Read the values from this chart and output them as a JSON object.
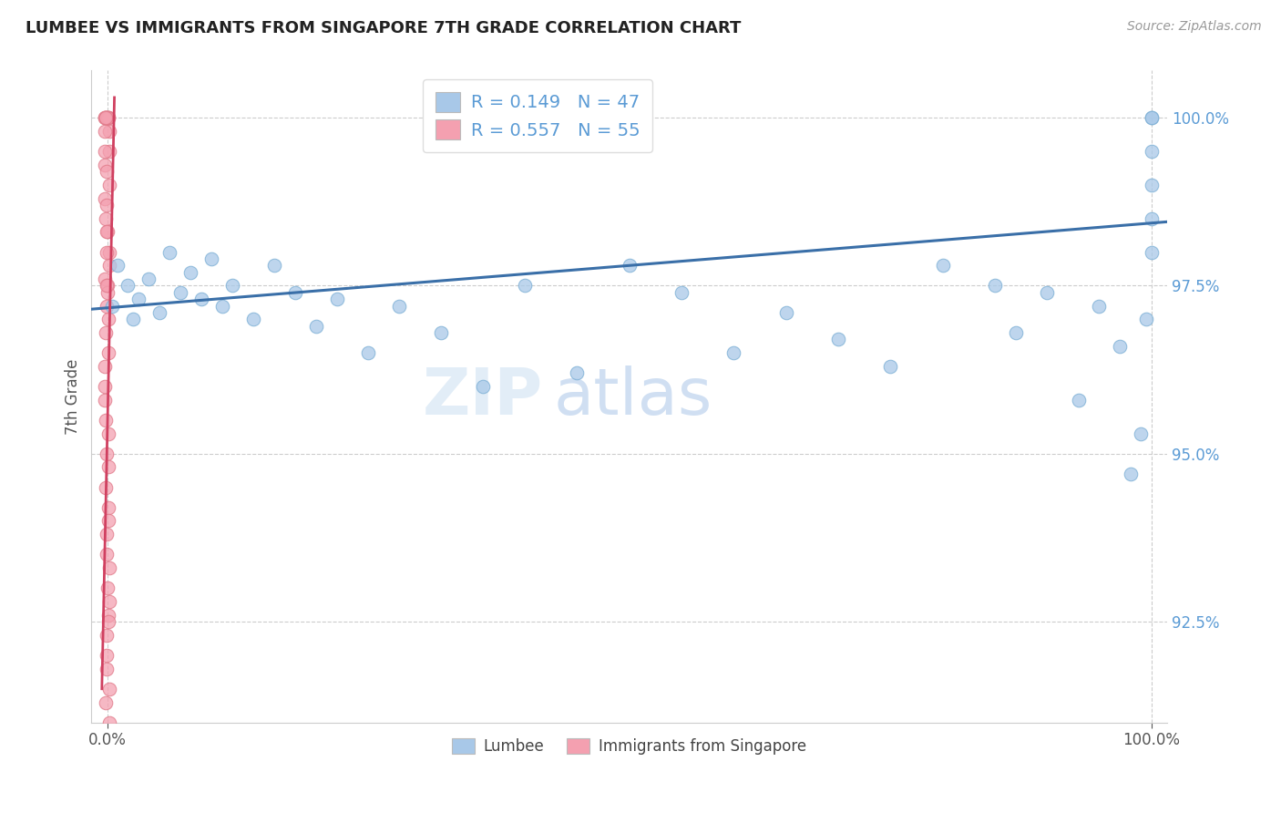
{
  "title": "LUMBEE VS IMMIGRANTS FROM SINGAPORE 7TH GRADE CORRELATION CHART",
  "source": "Source: ZipAtlas.com",
  "ylabel": "7th Grade",
  "r_lumbee": 0.149,
  "n_lumbee": 47,
  "r_singapore": 0.557,
  "n_singapore": 55,
  "lumbee_color": "#a8c8e8",
  "lumbee_edge": "#7aaed4",
  "singapore_color": "#f4a0b0",
  "singapore_edge": "#e07888",
  "trend_blue_color": "#3a6fa8",
  "trend_pink_color": "#d04060",
  "tick_color": "#5b9bd5",
  "watermark_color": "#d0e4f4",
  "lumbee_x": [
    0.5,
    1.0,
    2.0,
    2.5,
    3.0,
    4.0,
    5.0,
    6.0,
    7.0,
    8.0,
    9.0,
    10.0,
    11.0,
    12.0,
    14.0,
    16.0,
    18.0,
    20.0,
    22.0,
    25.0,
    28.0,
    32.0,
    36.0,
    40.0,
    45.0,
    50.0,
    55.0,
    60.0,
    65.0,
    70.0,
    75.0,
    80.0,
    85.0,
    87.0,
    90.0,
    93.0,
    95.0,
    97.0,
    98.0,
    99.0,
    99.5,
    100.0,
    100.0,
    100.0,
    100.0,
    100.0,
    100.0
  ],
  "lumbee_y": [
    97.2,
    97.8,
    97.5,
    97.0,
    97.3,
    97.6,
    97.1,
    98.0,
    97.4,
    97.7,
    97.3,
    97.9,
    97.2,
    97.5,
    97.0,
    97.8,
    97.4,
    96.9,
    97.3,
    96.5,
    97.2,
    96.8,
    96.0,
    97.5,
    96.2,
    97.8,
    97.4,
    96.5,
    97.1,
    96.7,
    96.3,
    97.8,
    97.5,
    96.8,
    97.4,
    95.8,
    97.2,
    96.6,
    94.7,
    95.3,
    97.0,
    98.0,
    98.5,
    99.0,
    99.5,
    100.0,
    100.0
  ],
  "singapore_x": [
    0.0,
    0.0,
    0.0,
    0.0,
    0.0,
    0.0,
    0.0,
    0.0,
    0.0,
    0.0,
    0.0,
    0.0,
    0.0,
    0.0,
    0.0,
    0.0,
    0.0,
    0.0,
    0.0,
    0.0,
    0.0,
    0.0,
    0.0,
    0.0,
    0.0,
    0.0,
    0.0,
    0.0,
    0.0,
    0.0,
    0.0,
    0.0,
    0.0,
    0.0,
    0.0,
    0.0,
    0.0,
    0.0,
    0.0,
    0.0,
    0.0,
    0.0,
    0.0,
    0.0,
    0.0,
    0.0,
    0.0,
    0.0,
    0.0,
    0.0,
    0.0,
    0.0,
    0.0,
    0.0,
    0.0
  ],
  "singapore_y": [
    100.0,
    100.0,
    100.0,
    100.0,
    100.0,
    99.8,
    99.5,
    99.3,
    99.0,
    98.8,
    98.5,
    98.3,
    98.0,
    97.8,
    97.6,
    97.5,
    97.4,
    97.2,
    97.0,
    96.8,
    96.5,
    96.3,
    96.0,
    95.8,
    95.5,
    95.3,
    95.0,
    94.8,
    94.5,
    94.2,
    94.0,
    93.8,
    93.5,
    93.3,
    93.0,
    92.8,
    92.6,
    92.5,
    92.3,
    92.0,
    91.8,
    91.5,
    91.3,
    91.0,
    97.5,
    98.0,
    98.3,
    98.7,
    99.2,
    99.5,
    99.8,
    100.0,
    100.0,
    100.0,
    100.0
  ],
  "ylim_min": 91.0,
  "ylim_max": 100.7,
  "xlim_min": -1.5,
  "xlim_max": 101.5,
  "yticks": [
    92.5,
    95.0,
    97.5,
    100.0
  ],
  "ytick_labels": [
    "92.5%",
    "95.0%",
    "97.5%",
    "100.0%"
  ],
  "trend_x_start": -1.5,
  "trend_x_end": 101.5,
  "trend_y_start": 97.15,
  "trend_y_end": 98.45,
  "pink_trend_x_start": -0.5,
  "pink_trend_x_end": 0.7,
  "pink_trend_y_start": 91.5,
  "pink_trend_y_end": 100.3
}
